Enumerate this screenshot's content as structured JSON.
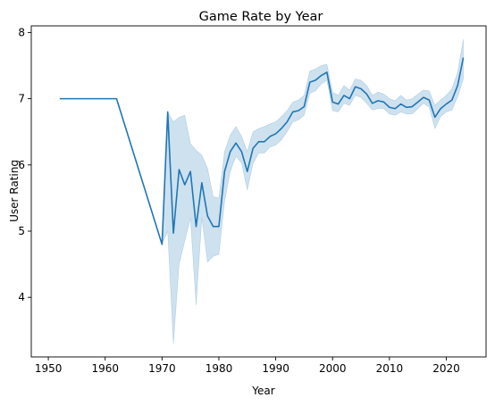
{
  "chart_data": {
    "type": "line",
    "title": "Game Rate by Year",
    "xlabel": "Year",
    "ylabel": "User Rating",
    "xlim": [
      1947,
      2027
    ],
    "ylim": [
      3.1,
      8.1
    ],
    "xticks": [
      1950,
      1960,
      1970,
      1980,
      1990,
      2000,
      2010,
      2020
    ],
    "yticks": [
      4,
      5,
      6,
      7,
      8
    ],
    "grid": false,
    "legend": "none",
    "colors": {
      "line": "#1f77b4",
      "band": "#1f77b4"
    },
    "series": [
      {
        "x": [
          1952,
          1962,
          1970,
          1971,
          1972,
          1973,
          1974,
          1975,
          1976,
          1977,
          1978,
          1979,
          1980,
          1981,
          1982,
          1983,
          1984,
          1985,
          1986,
          1987,
          1988,
          1989,
          1990,
          1991,
          1992,
          1993,
          1994,
          1995,
          1996,
          1997,
          1998,
          1999,
          2000,
          2001,
          2002,
          2003,
          2004,
          2005,
          2006,
          2007,
          2008,
          2009,
          2010,
          2011,
          2012,
          2013,
          2014,
          2015,
          2016,
          2017,
          2018,
          2019,
          2020,
          2021,
          2022,
          2023
        ],
        "y": [
          7.0,
          7.0,
          4.8,
          6.8,
          4.97,
          5.93,
          5.7,
          5.9,
          5.07,
          5.73,
          5.23,
          5.07,
          5.07,
          5.9,
          6.2,
          6.33,
          6.2,
          5.9,
          6.25,
          6.35,
          6.35,
          6.43,
          6.47,
          6.55,
          6.65,
          6.8,
          6.82,
          6.88,
          7.25,
          7.28,
          7.35,
          7.4,
          6.95,
          6.92,
          7.05,
          7.0,
          7.18,
          7.15,
          7.07,
          6.93,
          6.97,
          6.95,
          6.87,
          6.85,
          6.92,
          6.87,
          6.88,
          6.95,
          7.02,
          6.98,
          6.72,
          6.85,
          6.92,
          6.98,
          7.2,
          7.62
        ],
        "lower": [
          7.0,
          7.0,
          4.8,
          5.0,
          3.3,
          4.5,
          4.85,
          5.2,
          3.88,
          5.2,
          4.53,
          4.62,
          4.65,
          5.45,
          5.9,
          6.13,
          6.03,
          5.62,
          6.02,
          6.18,
          6.18,
          6.27,
          6.3,
          6.38,
          6.5,
          6.65,
          6.68,
          6.75,
          7.08,
          7.12,
          7.22,
          7.28,
          6.82,
          6.8,
          6.93,
          6.9,
          7.05,
          7.02,
          6.93,
          6.83,
          6.85,
          6.85,
          6.77,
          6.75,
          6.8,
          6.77,
          6.77,
          6.85,
          6.93,
          6.87,
          6.55,
          6.73,
          6.8,
          6.83,
          7.03,
          7.3
        ],
        "upper": [
          7.0,
          7.0,
          4.8,
          6.8,
          6.65,
          6.72,
          6.75,
          6.32,
          6.22,
          6.15,
          5.95,
          5.52,
          5.5,
          6.2,
          6.45,
          6.58,
          6.43,
          6.2,
          6.5,
          6.55,
          6.58,
          6.62,
          6.65,
          6.73,
          6.82,
          6.95,
          6.98,
          7.05,
          7.42,
          7.45,
          7.5,
          7.52,
          7.1,
          7.05,
          7.2,
          7.13,
          7.3,
          7.28,
          7.2,
          7.05,
          7.1,
          7.07,
          7.0,
          6.97,
          7.05,
          6.98,
          7.0,
          7.07,
          7.13,
          7.12,
          6.9,
          6.98,
          7.05,
          7.15,
          7.4,
          7.9
        ]
      }
    ]
  }
}
